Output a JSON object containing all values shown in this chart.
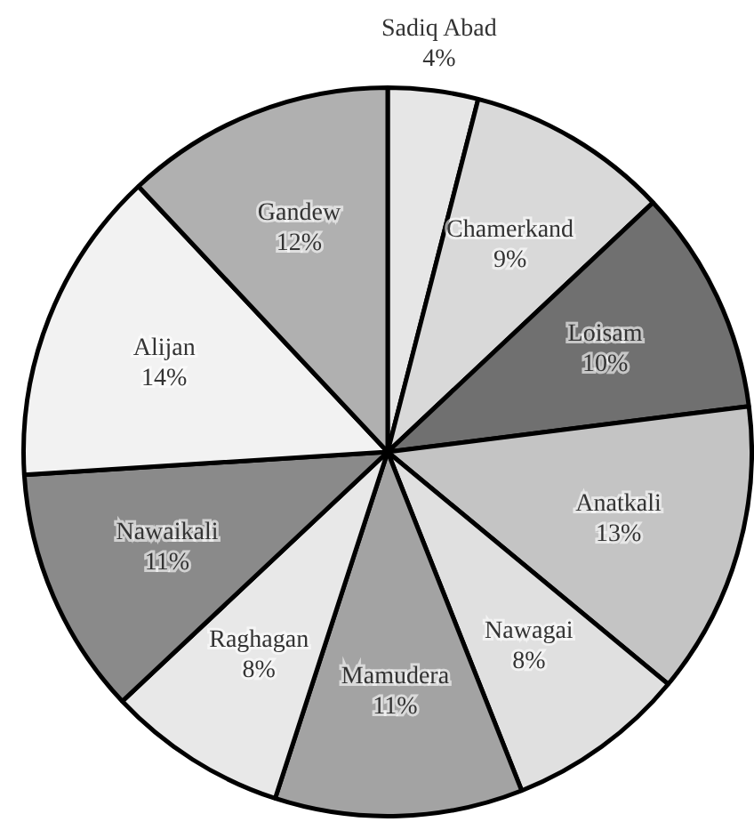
{
  "chart_data": {
    "type": "pie",
    "categories": [
      "Sadiq Abad",
      "Chamerkand",
      "Loisam",
      "Anatkali",
      "Nawagai",
      "Mamudera",
      "Raghagan",
      "Nawaikali",
      "Alijan",
      "Gandew"
    ],
    "values": [
      4,
      9,
      10,
      13,
      8,
      11,
      8,
      11,
      14,
      12
    ],
    "value_labels": [
      "4%",
      "9%",
      "10%",
      "13%",
      "8%",
      "11%",
      "8%",
      "11%",
      "14%",
      "12%"
    ],
    "colors": [
      "#e6e6e6",
      "#d9d9d9",
      "#707070",
      "#c4c4c4",
      "#e0e0e0",
      "#a3a3a3",
      "#e8e8e8",
      "#8a8a8a",
      "#f2f2f2",
      "#b0b0b0"
    ],
    "legend": false
  }
}
